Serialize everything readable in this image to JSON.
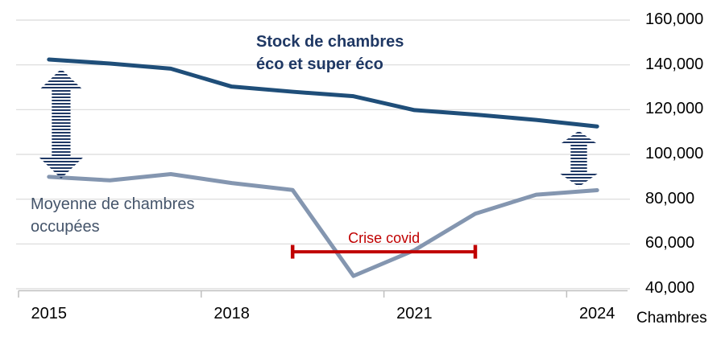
{
  "labels": {
    "stock_title_line1": "Stock de chambres",
    "stock_title_line2": "éco et super éco",
    "occupees_label_line1": "Moyenne de chambres",
    "occupees_label_line2": "occupées",
    "axis_unit": "Chambres"
  },
  "colors": {
    "stock_line": "#1F4E79",
    "occupees_line": "#8496B0",
    "title_text": "#1F3864",
    "occupees_text": "#44546A",
    "covid_red": "#C00000",
    "gridline": "#D9D9D9",
    "axis": "#BFBFBF",
    "arrow_stripe": "#1F3864"
  },
  "chart_data": {
    "type": "line",
    "title": "",
    "x": [
      2015,
      2016,
      2017,
      2018,
      2019,
      2020,
      2021,
      2022,
      2023,
      2024
    ],
    "x_tick_labels": [
      "2015",
      "2018",
      "2021",
      "2024"
    ],
    "series": [
      {
        "name": "Stock de chambres éco et super éco",
        "color": "#1F4E79",
        "values": [
          142400,
          140600,
          138300,
          130300,
          128000,
          126000,
          119800,
          117800,
          115400,
          112500
        ]
      },
      {
        "name": "Moyenne de chambres occupées",
        "color": "#8496B0",
        "values": [
          90000,
          88400,
          91200,
          87200,
          84100,
          45700,
          57200,
          73500,
          82000,
          84000
        ]
      }
    ],
    "ylim": [
      40000,
      160000
    ],
    "y_ticks": [
      160000,
      140000,
      120000,
      100000,
      80000,
      60000,
      40000
    ],
    "y_tick_labels": [
      "160,000",
      "140,000",
      "120,000",
      "100,000",
      "80,000",
      "60,000",
      "40,000"
    ],
    "y_axis_side": "right",
    "y_axis_unit": "Chambres",
    "grid": true,
    "legend": "none",
    "annotations": {
      "covid": {
        "label": "Crise covid",
        "from_year": 2019,
        "to_year": 2022,
        "value": 56500,
        "color": "#C00000"
      },
      "gap_arrows": [
        {
          "x_year": 2015.2,
          "top_value": 138200,
          "bottom_value": 89200
        },
        {
          "x_year": 2023.7,
          "top_value": 110500,
          "bottom_value": 85500
        }
      ]
    }
  }
}
